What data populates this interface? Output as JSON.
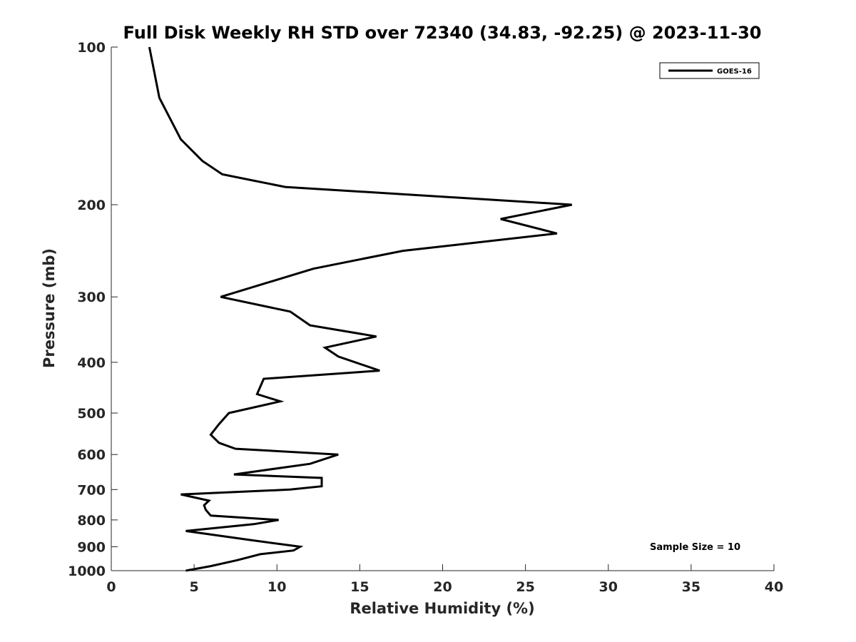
{
  "chart_data": {
    "type": "line",
    "title": "Full Disk Weekly RH STD over 72340 (34.83, -92.25) @ 2023-11-30",
    "xlabel": "Relative Humidity (%)",
    "ylabel": "Pressure (mb)",
    "xlim": [
      0,
      40
    ],
    "ylim": [
      100,
      1000
    ],
    "y_scale": "log",
    "y_reversed": true,
    "x_ticks": [
      0,
      5,
      10,
      15,
      20,
      25,
      30,
      35,
      40
    ],
    "y_ticks": [
      100,
      200,
      300,
      400,
      500,
      600,
      700,
      800,
      900,
      1000
    ],
    "legend": {
      "position": "top-right",
      "entries": [
        "GOES-16"
      ]
    },
    "annotation": "Sample Size = 10",
    "grid": false,
    "series": [
      {
        "name": "GOES-16",
        "color": "#000000",
        "x": [
          2.3,
          2.9,
          4.2,
          5.5,
          6.7,
          10.5,
          27.8,
          23.5,
          26.9,
          17.6,
          12.2,
          6.6,
          10.8,
          12.0,
          16.0,
          12.9,
          13.7,
          16.2,
          9.2,
          8.8,
          10.2,
          7.1,
          6.5,
          6.0,
          6.5,
          7.5,
          13.7,
          12.0,
          7.4,
          12.7,
          12.7,
          10.8,
          4.2,
          5.9,
          5.6,
          5.7,
          6.0,
          10.1,
          8.6,
          4.5,
          8.5,
          11.4,
          11.0,
          9.0,
          7.6,
          6.0,
          4.5
        ],
        "y": [
          100,
          125,
          150,
          165,
          175,
          185,
          200,
          213,
          227,
          245,
          265,
          300,
          320,
          340,
          357,
          375,
          390,
          415,
          430,
          460,
          475,
          500,
          525,
          550,
          570,
          585,
          600,
          625,
          655,
          665,
          690,
          700,
          715,
          735,
          750,
          765,
          785,
          800,
          815,
          840,
          875,
          900,
          915,
          930,
          955,
          980,
          1000
        ]
      }
    ]
  }
}
